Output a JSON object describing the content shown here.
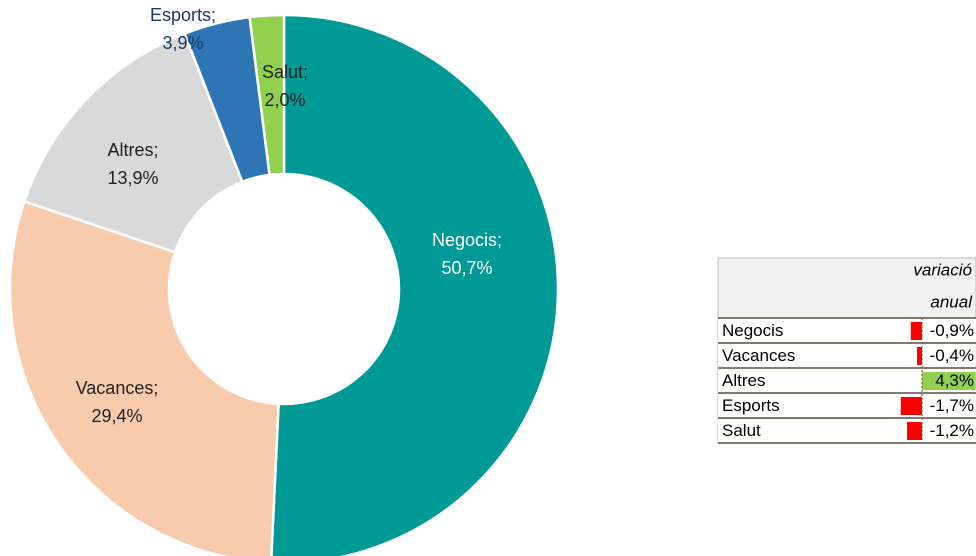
{
  "chart_data": [
    {
      "type": "pie",
      "categories": [
        "Negocis",
        "Vacances",
        "Altres",
        "Esports",
        "Salut"
      ],
      "separator": ";",
      "values": [
        50.7,
        29.4,
        13.9,
        3.9,
        2.0
      ],
      "value_labels": [
        "50,7%",
        "29,4%",
        "13,9%",
        "3,9%",
        "2,0%"
      ],
      "colors": [
        "#009a96",
        "#f8cbad",
        "#d9d9d9",
        "#2e75b6",
        "#92d050"
      ],
      "label_colors": [
        "#ffffff",
        "#222222",
        "#222222",
        "#1f3864",
        "#222222"
      ]
    },
    {
      "type": "databar",
      "header": [
        "variació",
        "anual"
      ],
      "categories": [
        "Negocis",
        "Vacances",
        "Altres",
        "Esports",
        "Salut"
      ],
      "values": [
        -0.9,
        -0.4,
        4.3,
        -1.7,
        -1.2
      ],
      "value_labels": [
        "-0,9%",
        "-0,4%",
        "4,3%",
        "-1,7%",
        "-1,2%"
      ],
      "negative_color": "#ff0000",
      "positive_color": "#92d050"
    }
  ]
}
